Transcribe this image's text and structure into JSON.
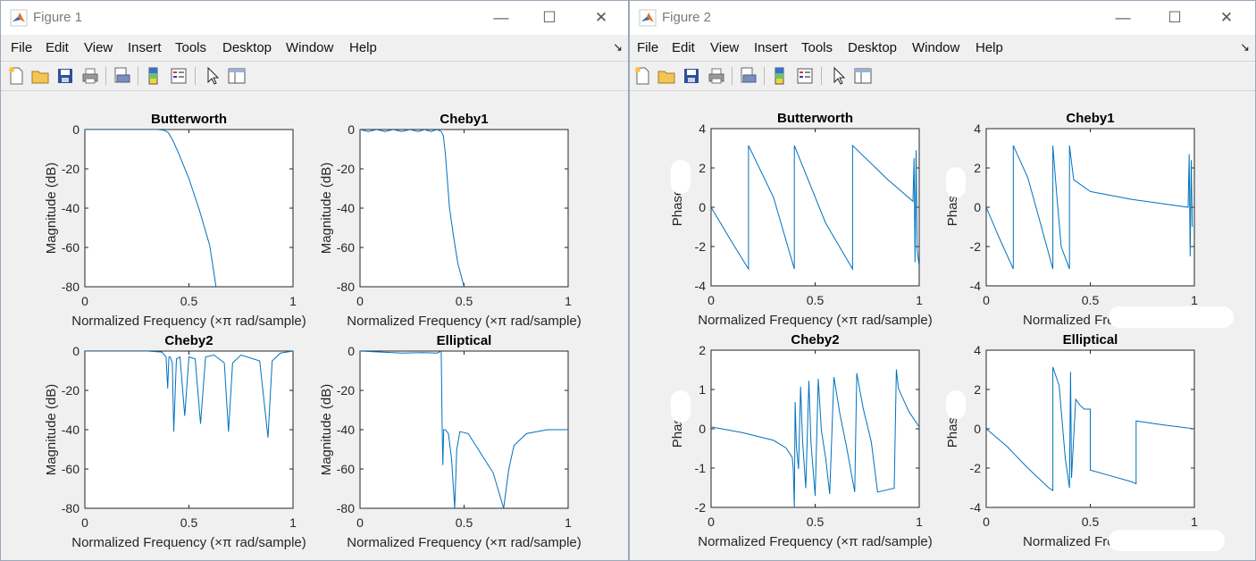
{
  "windows": [
    {
      "title": "Figure 1",
      "menu": [
        "File",
        "Edit",
        "View",
        "Insert",
        "Tools",
        "Desktop",
        "Window",
        "Help"
      ],
      "plots": [
        {
          "title": "Butterworth",
          "ylabel": "Magnitude (dB)",
          "xlabel": "Normalized Frequency (×π rad/sample)",
          "xticks": [
            "0",
            "0.5",
            "1"
          ],
          "yticks": [
            "0",
            "-20",
            "-40",
            "-60",
            "-80"
          ]
        },
        {
          "title": "Cheby1",
          "ylabel": "Magnitude (dB)",
          "xlabel": "Normalized Frequency (×π rad/sample)",
          "xticks": [
            "0",
            "0.5",
            "1"
          ],
          "yticks": [
            "0",
            "-20",
            "-40",
            "-60",
            "-80"
          ]
        },
        {
          "title": "Cheby2",
          "ylabel": "Magnitude (dB)",
          "xlabel": "Normalized Frequency (×π rad/sample)",
          "xticks": [
            "0",
            "0.5",
            "1"
          ],
          "yticks": [
            "0",
            "-20",
            "-40",
            "-60",
            "-80"
          ]
        },
        {
          "title": "Elliptical",
          "ylabel": "Magnitude (dB)",
          "xlabel": "Normalized Frequency (×π rad/sample)",
          "xticks": [
            "0",
            "0.5",
            "1"
          ],
          "yticks": [
            "0",
            "-20",
            "-40",
            "-60",
            "-80"
          ]
        }
      ]
    },
    {
      "title": "Figure 2",
      "menu": [
        "File",
        "Edit",
        "View",
        "Insert",
        "Tools",
        "Desktop",
        "Window",
        "Help"
      ],
      "plots": [
        {
          "title": "Butterworth",
          "ylabel": "Phase",
          "xlabel": "Normalized Frequency (×π rad/sample)",
          "xticks": [
            "0",
            "0.5",
            "1"
          ],
          "yticks": [
            "4",
            "2",
            "0",
            "-2",
            "-4"
          ]
        },
        {
          "title": "Cheby1",
          "ylabel": "Phase",
          "xlabel": "Normalized Frequency",
          "xticks": [
            "0",
            "0.5",
            "1"
          ],
          "yticks": [
            "4",
            "2",
            "0",
            "-2",
            "-4"
          ]
        },
        {
          "title": "Cheby2",
          "ylabel": "Phase",
          "xlabel": "Normalized Frequency (×π rad/sample)",
          "xticks": [
            "0",
            "0.5",
            "1"
          ],
          "yticks": [
            "2",
            "1",
            "0",
            "-1",
            "-2"
          ]
        },
        {
          "title": "Elliptical",
          "ylabel": "Phase",
          "xlabel": "Normalized Frequency",
          "xticks": [
            "0",
            "0.5",
            "1"
          ],
          "yticks": [
            "4",
            "2",
            "0",
            "-2",
            "-4"
          ]
        }
      ]
    }
  ],
  "colors": {
    "line": "#0072bd",
    "axis": "#262626",
    "background": "#f0f0f0"
  },
  "toolbar_icons": [
    "new-figure-icon",
    "open-file-icon",
    "save-icon",
    "print-icon",
    "print-preview-icon",
    "colorbar-icon",
    "legend-icon",
    "pointer-icon",
    "property-editor-icon"
  ],
  "chart_data": [
    {
      "type": "line",
      "title": "Butterworth",
      "xlabel": "Normalized Frequency (×π rad/sample)",
      "ylabel": "Magnitude (dB)",
      "xlim": [
        0,
        1
      ],
      "ylim": [
        -80,
        0
      ],
      "series": [
        {
          "x": [
            0,
            0.2,
            0.35,
            0.38,
            0.4,
            0.42,
            0.45,
            0.5,
            0.55,
            0.6,
            0.63
          ],
          "y": [
            0,
            0,
            0,
            -0.3,
            -1.5,
            -5,
            -12,
            -25,
            -41,
            -59,
            -80
          ]
        }
      ]
    },
    {
      "type": "line",
      "title": "Cheby1",
      "xlabel": "Normalized Frequency (×π rad/sample)",
      "ylabel": "Magnitude (dB)",
      "xlim": [
        0,
        1
      ],
      "ylim": [
        -80,
        0
      ],
      "series": [
        {
          "x": [
            0,
            0.04,
            0.08,
            0.12,
            0.16,
            0.2,
            0.24,
            0.28,
            0.31,
            0.34,
            0.37,
            0.39,
            0.4,
            0.41,
            0.43,
            0.45,
            0.47,
            0.5
          ],
          "y": [
            0,
            -1,
            0,
            -1,
            0,
            -1,
            0,
            -1,
            0,
            -1,
            0,
            -1,
            -3,
            -12,
            -40,
            -55,
            -68,
            -80
          ]
        }
      ]
    },
    {
      "type": "line",
      "title": "Cheby2",
      "xlabel": "Normalized Frequency (×π rad/sample)",
      "ylabel": "Magnitude (dB)",
      "xlim": [
        0,
        1
      ],
      "ylim": [
        -80,
        0
      ],
      "series": [
        {
          "x": [
            0,
            0.3,
            0.37,
            0.39,
            0.398,
            0.404,
            0.41,
            0.42,
            0.427,
            0.44,
            0.457,
            0.48,
            0.5,
            0.53,
            0.556,
            0.58,
            0.62,
            0.67,
            0.69,
            0.71,
            0.75,
            0.84,
            0.88,
            0.9,
            0.94,
            1
          ],
          "y": [
            0,
            0,
            -0.5,
            -3,
            -19,
            -3,
            -3,
            -6,
            -41,
            -4,
            -3,
            -33,
            -3,
            -4,
            -37,
            -3,
            -2,
            -6,
            -41,
            -6,
            -2,
            -5,
            -44,
            -5,
            -1,
            0
          ]
        }
      ]
    },
    {
      "type": "line",
      "title": "Elliptical",
      "xlabel": "Normalized Frequency (×π rad/sample)",
      "ylabel": "Magnitude (dB)",
      "xlim": [
        0,
        1
      ],
      "ylim": [
        -80,
        0
      ],
      "series": [
        {
          "x": [
            0,
            0.1,
            0.2,
            0.3,
            0.37,
            0.39,
            0.395,
            0.398,
            0.402,
            0.41,
            0.425,
            0.44,
            0.455,
            0.465,
            0.48,
            0.52,
            0.58,
            0.64,
            0.69,
            0.715,
            0.74,
            0.8,
            0.9,
            1
          ],
          "y": [
            0,
            -0.5,
            -1,
            -0.8,
            -1,
            0,
            -40,
            -58,
            -40,
            -40,
            -42,
            -55,
            -80,
            -50,
            -41,
            -42,
            -52,
            -62,
            -80,
            -60,
            -48,
            -42,
            -40,
            -40
          ]
        }
      ]
    },
    {
      "type": "line",
      "title": "Butterworth",
      "xlabel": "Normalized Frequency (×π rad/sample)",
      "ylabel": "Phase",
      "xlim": [
        0,
        1
      ],
      "ylim": [
        -4,
        4
      ],
      "series": [
        {
          "x": [
            0,
            0.09,
            0.18,
            0.18,
            0.3,
            0.4,
            0.4,
            0.55,
            0.68,
            0.68,
            0.85,
            0.97,
            0.975,
            0.98,
            0.985,
            0.99,
            1
          ],
          "y": [
            0,
            -1.6,
            -3.14,
            3.14,
            0.5,
            -3.14,
            3.14,
            -0.8,
            -3.14,
            3.14,
            1.4,
            0.3,
            2.5,
            -2.8,
            2.9,
            -2.2,
            -3
          ]
        }
      ]
    },
    {
      "type": "line",
      "title": "Cheby1",
      "xlabel": "Normalized Frequency",
      "ylabel": "Phase",
      "xlim": [
        0,
        1
      ],
      "ylim": [
        -4,
        4
      ],
      "series": [
        {
          "x": [
            0,
            0.06,
            0.13,
            0.13,
            0.2,
            0.26,
            0.32,
            0.32,
            0.34,
            0.36,
            0.4,
            0.4,
            0.42,
            0.5,
            0.7,
            0.97,
            0.975,
            0.98,
            0.985,
            0.99
          ],
          "y": [
            0,
            -1.5,
            -3.14,
            3.14,
            1.5,
            -0.8,
            -3.14,
            3.14,
            0.5,
            -2,
            -3.14,
            3.14,
            1.4,
            0.8,
            0.4,
            0,
            2.7,
            -2.5,
            2.4,
            -1
          ]
        }
      ]
    },
    {
      "type": "line",
      "title": "Cheby2",
      "xlabel": "Normalized Frequency (×π rad/sample)",
      "ylabel": "Phase",
      "xlim": [
        0,
        1
      ],
      "ylim": [
        -2.1,
        2
      ],
      "series": [
        {
          "x": [
            0,
            0.15,
            0.3,
            0.36,
            0.39,
            0.395,
            0.4,
            0.404,
            0.41,
            0.42,
            0.43,
            0.44,
            0.455,
            0.47,
            0.48,
            0.5,
            0.515,
            0.53,
            0.55,
            0.57,
            0.59,
            0.62,
            0.65,
            0.69,
            0.7,
            0.73,
            0.77,
            0.8,
            0.88,
            0.89,
            0.9,
            0.95,
            1
          ],
          "y": [
            0,
            -0.15,
            -0.35,
            -0.55,
            -0.8,
            -1.1,
            -2.1,
            0.65,
            -0.5,
            -1.1,
            1.05,
            -0.4,
            -1.6,
            1.2,
            -0.4,
            -1.8,
            1.25,
            -0.1,
            -0.8,
            -1.75,
            1.3,
            0.3,
            -0.5,
            -1.7,
            1.4,
            0.5,
            -0.4,
            -1.7,
            -1.6,
            1.5,
            1.0,
            0.4,
            0
          ]
        }
      ]
    },
    {
      "type": "line",
      "title": "Elliptical",
      "xlabel": "Normalized Frequency",
      "ylabel": "Phase",
      "xlim": [
        0,
        1
      ],
      "ylim": [
        -4,
        4
      ],
      "series": [
        {
          "x": [
            0,
            0.1,
            0.2,
            0.3,
            0.32,
            0.32,
            0.35,
            0.38,
            0.4,
            0.405,
            0.41,
            0.43,
            0.45,
            0.47,
            0.48,
            0.5,
            0.5,
            0.6,
            0.7,
            0.72,
            0.72,
            0.85,
            1
          ],
          "y": [
            0,
            -0.9,
            -2,
            -3,
            -3.14,
            3.14,
            2.2,
            -1.5,
            -3,
            2.9,
            -2.5,
            1.5,
            1.2,
            1.0,
            1.0,
            1.0,
            -2.1,
            -2.4,
            -2.7,
            -2.8,
            0.4,
            0.2,
            0
          ]
        }
      ]
    }
  ]
}
